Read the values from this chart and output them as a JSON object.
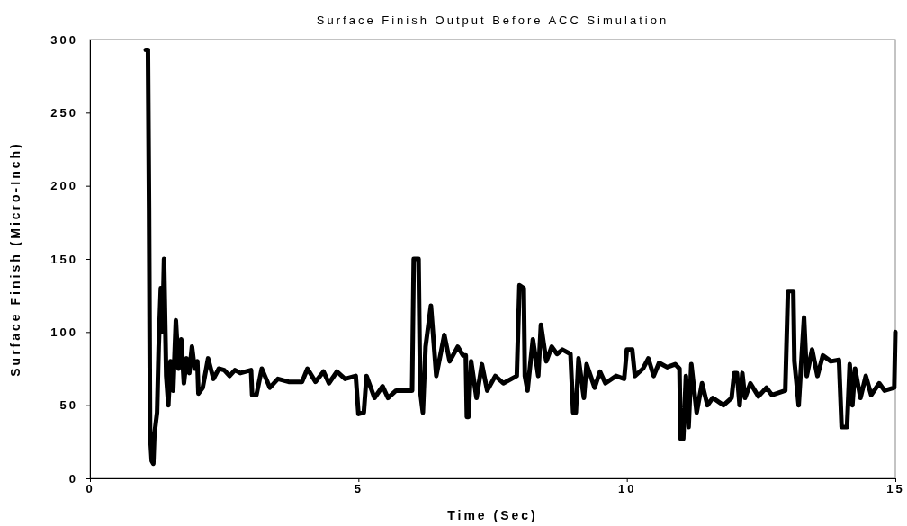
{
  "chart_data": {
    "type": "line",
    "title": "Surface Finish Output Before ACC Simulation",
    "xlabel": "Time (Sec)",
    "ylabel": "Surface Finish (Micro-Inch)",
    "xlim": [
      0,
      15
    ],
    "xticks": [
      0,
      5,
      10,
      15
    ],
    "ylim": [
      0,
      300
    ],
    "yticks": [
      0,
      50,
      100,
      150,
      200,
      250,
      300
    ],
    "series": [
      {
        "color": "#000000",
        "x": [
          1.04,
          1.08,
          1.1,
          1.12,
          1.15,
          1.18,
          1.2,
          1.25,
          1.28,
          1.32,
          1.35,
          1.38,
          1.42,
          1.46,
          1.5,
          1.55,
          1.6,
          1.65,
          1.7,
          1.75,
          1.8,
          1.85,
          1.9,
          1.95,
          2.0,
          2.02,
          2.1,
          2.2,
          2.3,
          2.4,
          2.5,
          2.6,
          2.7,
          2.8,
          3.0,
          3.02,
          3.1,
          3.2,
          3.35,
          3.5,
          3.7,
          3.95,
          4.05,
          4.2,
          4.35,
          4.45,
          4.6,
          4.75,
          4.95,
          5.0,
          5.1,
          5.15,
          5.3,
          5.45,
          5.55,
          5.7,
          6.0,
          6.03,
          6.12,
          6.15,
          6.2,
          6.25,
          6.35,
          6.45,
          6.6,
          6.7,
          6.85,
          6.95,
          7.0,
          7.02,
          7.05,
          7.1,
          7.2,
          7.3,
          7.4,
          7.55,
          7.7,
          7.95,
          8.0,
          8.08,
          8.1,
          8.15,
          8.25,
          8.35,
          8.4,
          8.5,
          8.6,
          8.7,
          8.8,
          8.95,
          9.0,
          9.05,
          9.1,
          9.2,
          9.25,
          9.4,
          9.5,
          9.6,
          9.8,
          9.95,
          10.0,
          10.1,
          10.15,
          10.3,
          10.4,
          10.5,
          10.6,
          10.75,
          10.9,
          10.98,
          11.0,
          11.05,
          11.1,
          11.15,
          11.2,
          11.3,
          11.4,
          11.5,
          11.6,
          11.8,
          11.95,
          12.0,
          12.05,
          12.1,
          12.15,
          12.2,
          12.3,
          12.45,
          12.6,
          12.7,
          12.95,
          13.0,
          13.1,
          13.12,
          13.2,
          13.3,
          13.35,
          13.45,
          13.55,
          13.65,
          13.8,
          13.95,
          14.0,
          14.1,
          14.15,
          14.2,
          14.25,
          14.35,
          14.45,
          14.55,
          14.7,
          14.8,
          14.98,
          15.0
        ],
        "values": [
          293,
          293,
          185,
          30,
          12,
          10,
          30,
          45,
          90,
          130,
          100,
          150,
          70,
          50,
          80,
          60,
          108,
          75,
          95,
          65,
          82,
          72,
          90,
          75,
          80,
          58,
          62,
          82,
          68,
          75,
          74,
          70,
          74,
          72,
          74,
          57,
          57,
          75,
          62,
          68,
          66,
          66,
          75,
          66,
          73,
          65,
          73,
          68,
          70,
          44,
          45,
          70,
          55,
          63,
          55,
          60,
          60,
          150,
          150,
          60,
          45,
          90,
          118,
          70,
          98,
          80,
          90,
          84,
          84,
          42,
          42,
          80,
          55,
          78,
          60,
          70,
          65,
          70,
          132,
          130,
          70,
          60,
          95,
          70,
          105,
          80,
          90,
          85,
          88,
          85,
          45,
          45,
          82,
          55,
          78,
          62,
          73,
          65,
          70,
          68,
          88,
          88,
          70,
          75,
          82,
          70,
          79,
          76,
          78,
          75,
          27,
          27,
          70,
          35,
          78,
          45,
          65,
          50,
          55,
          50,
          55,
          72,
          72,
          50,
          72,
          55,
          65,
          56,
          62,
          57,
          60,
          128,
          128,
          80,
          50,
          110,
          70,
          88,
          70,
          84,
          80,
          81,
          35,
          35,
          78,
          50,
          75,
          55,
          70,
          57,
          65,
          60,
          62,
          100
        ]
      }
    ]
  }
}
